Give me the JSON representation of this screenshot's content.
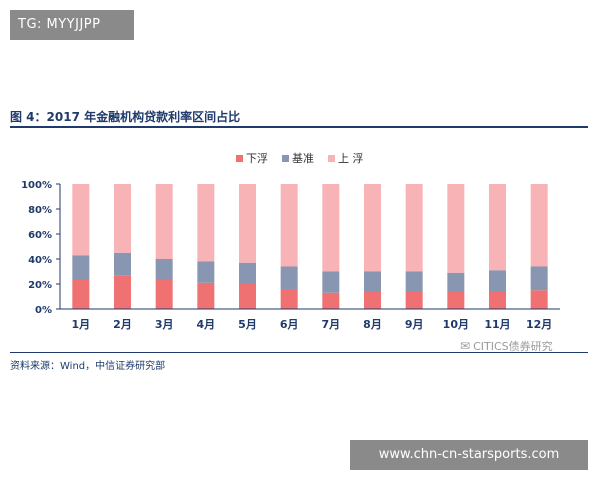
{
  "tag_label": "TG: MYYJJPP",
  "figure_title": "图 4：2017 年金融机构贷款利率区间占比",
  "source_text": "资料来源：Wind，中信证券研究部",
  "watermark_text": "CITICS债券研究",
  "url_label": "www.chn-cn-starsports.com",
  "chart_data": {
    "type": "bar",
    "stacked": true,
    "title": "",
    "xlabel": "",
    "ylabel": "",
    "ylim": [
      0,
      100
    ],
    "y_ticks": [
      "0%",
      "20%",
      "40%",
      "60%",
      "80%",
      "100%"
    ],
    "categories": [
      "1月",
      "2月",
      "3月",
      "4月",
      "5月",
      "6月",
      "7月",
      "8月",
      "9月",
      "10月",
      "11月",
      "12月"
    ],
    "legend_position": "top-center",
    "grid": false,
    "series": [
      {
        "name": "下浮",
        "color": "#f07171",
        "values": [
          24,
          27,
          24,
          21,
          20,
          16,
          13,
          14,
          14,
          14,
          14,
          15
        ]
      },
      {
        "name": "基准",
        "color": "#8896b1",
        "values": [
          19,
          18,
          16,
          17,
          17,
          18,
          17,
          16,
          16,
          15,
          17,
          19
        ]
      },
      {
        "name": "上 浮",
        "color": "#f8b3b7",
        "values": [
          57,
          55,
          60,
          62,
          63,
          66,
          70,
          70,
          70,
          71,
          69,
          66
        ]
      }
    ]
  }
}
